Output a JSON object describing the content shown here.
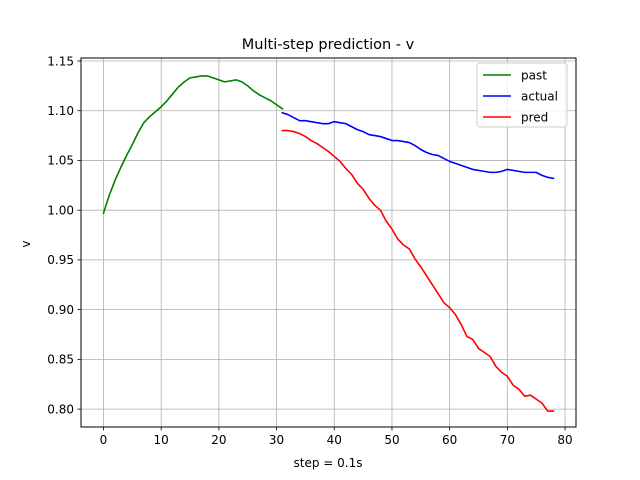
{
  "chart_data": {
    "type": "line",
    "title": "Multi-step prediction - v",
    "xlabel": "step = 0.1s",
    "ylabel": "v",
    "xlim": [
      -3.9,
      81.9
    ],
    "ylim": [
      0.782,
      1.153
    ],
    "xticks": [
      0,
      10,
      20,
      30,
      40,
      50,
      60,
      70,
      80
    ],
    "yticks": [
      0.8,
      0.85,
      0.9,
      0.95,
      1.0,
      1.05,
      1.1,
      1.15
    ],
    "ytick_labels": [
      "0.80",
      "0.85",
      "0.90",
      "0.95",
      "1.00",
      "1.05",
      "1.10",
      "1.15"
    ],
    "grid": true,
    "legend_position": "top-right",
    "series": [
      {
        "name": "past",
        "color": "#008000",
        "x": [
          0,
          1,
          2,
          3,
          4,
          5,
          6,
          7,
          8,
          9,
          10,
          11,
          12,
          13,
          14,
          15,
          16,
          17,
          18,
          19,
          20,
          21,
          22,
          23,
          24,
          25,
          26,
          27,
          28,
          29,
          30,
          31
        ],
        "y": [
          0.997,
          1.015,
          1.03,
          1.043,
          1.055,
          1.066,
          1.078,
          1.088,
          1.094,
          1.099,
          1.104,
          1.11,
          1.117,
          1.124,
          1.129,
          1.133,
          1.134,
          1.135,
          1.135,
          1.133,
          1.131,
          1.129,
          1.13,
          1.131,
          1.129,
          1.125,
          1.12,
          1.116,
          1.113,
          1.11,
          1.106,
          1.102
        ]
      },
      {
        "name": "actual",
        "color": "#0000ff",
        "x": [
          31,
          32,
          33,
          34,
          35,
          36,
          37,
          38,
          39,
          40,
          41,
          42,
          43,
          44,
          45,
          46,
          47,
          48,
          49,
          50,
          51,
          52,
          53,
          54,
          55,
          56,
          57,
          58,
          59,
          60,
          61,
          62,
          63,
          64,
          65,
          66,
          67,
          68,
          69,
          70,
          71,
          72,
          73,
          74,
          75,
          76,
          77,
          78
        ],
        "y": [
          1.098,
          1.096,
          1.093,
          1.09,
          1.09,
          1.089,
          1.088,
          1.087,
          1.087,
          1.089,
          1.088,
          1.087,
          1.084,
          1.081,
          1.079,
          1.076,
          1.075,
          1.074,
          1.072,
          1.07,
          1.07,
          1.069,
          1.068,
          1.065,
          1.061,
          1.058,
          1.056,
          1.055,
          1.052,
          1.049,
          1.047,
          1.045,
          1.043,
          1.041,
          1.04,
          1.039,
          1.038,
          1.038,
          1.039,
          1.041,
          1.04,
          1.039,
          1.038,
          1.038,
          1.038,
          1.035,
          1.033,
          1.032
        ]
      },
      {
        "name": "pred",
        "color": "#ff0000",
        "x": [
          31,
          32,
          33,
          34,
          35,
          36,
          37,
          38,
          39,
          40,
          41,
          42,
          43,
          44,
          45,
          46,
          47,
          48,
          49,
          50,
          51,
          52,
          53,
          54,
          55,
          56,
          57,
          58,
          59,
          60,
          61,
          62,
          63,
          64,
          65,
          66,
          67,
          68,
          69,
          70,
          71,
          72,
          73,
          74,
          75,
          76,
          77,
          78
        ],
        "y": [
          1.08,
          1.08,
          1.079,
          1.077,
          1.074,
          1.07,
          1.067,
          1.063,
          1.059,
          1.054,
          1.049,
          1.042,
          1.036,
          1.027,
          1.021,
          1.012,
          1.005,
          1.0,
          0.989,
          0.981,
          0.971,
          0.965,
          0.961,
          0.951,
          0.943,
          0.934,
          0.925,
          0.916,
          0.907,
          0.902,
          0.895,
          0.885,
          0.873,
          0.87,
          0.861,
          0.857,
          0.853,
          0.843,
          0.837,
          0.833,
          0.824,
          0.82,
          0.813,
          0.814,
          0.81,
          0.806,
          0.798,
          0.798
        ]
      }
    ]
  }
}
